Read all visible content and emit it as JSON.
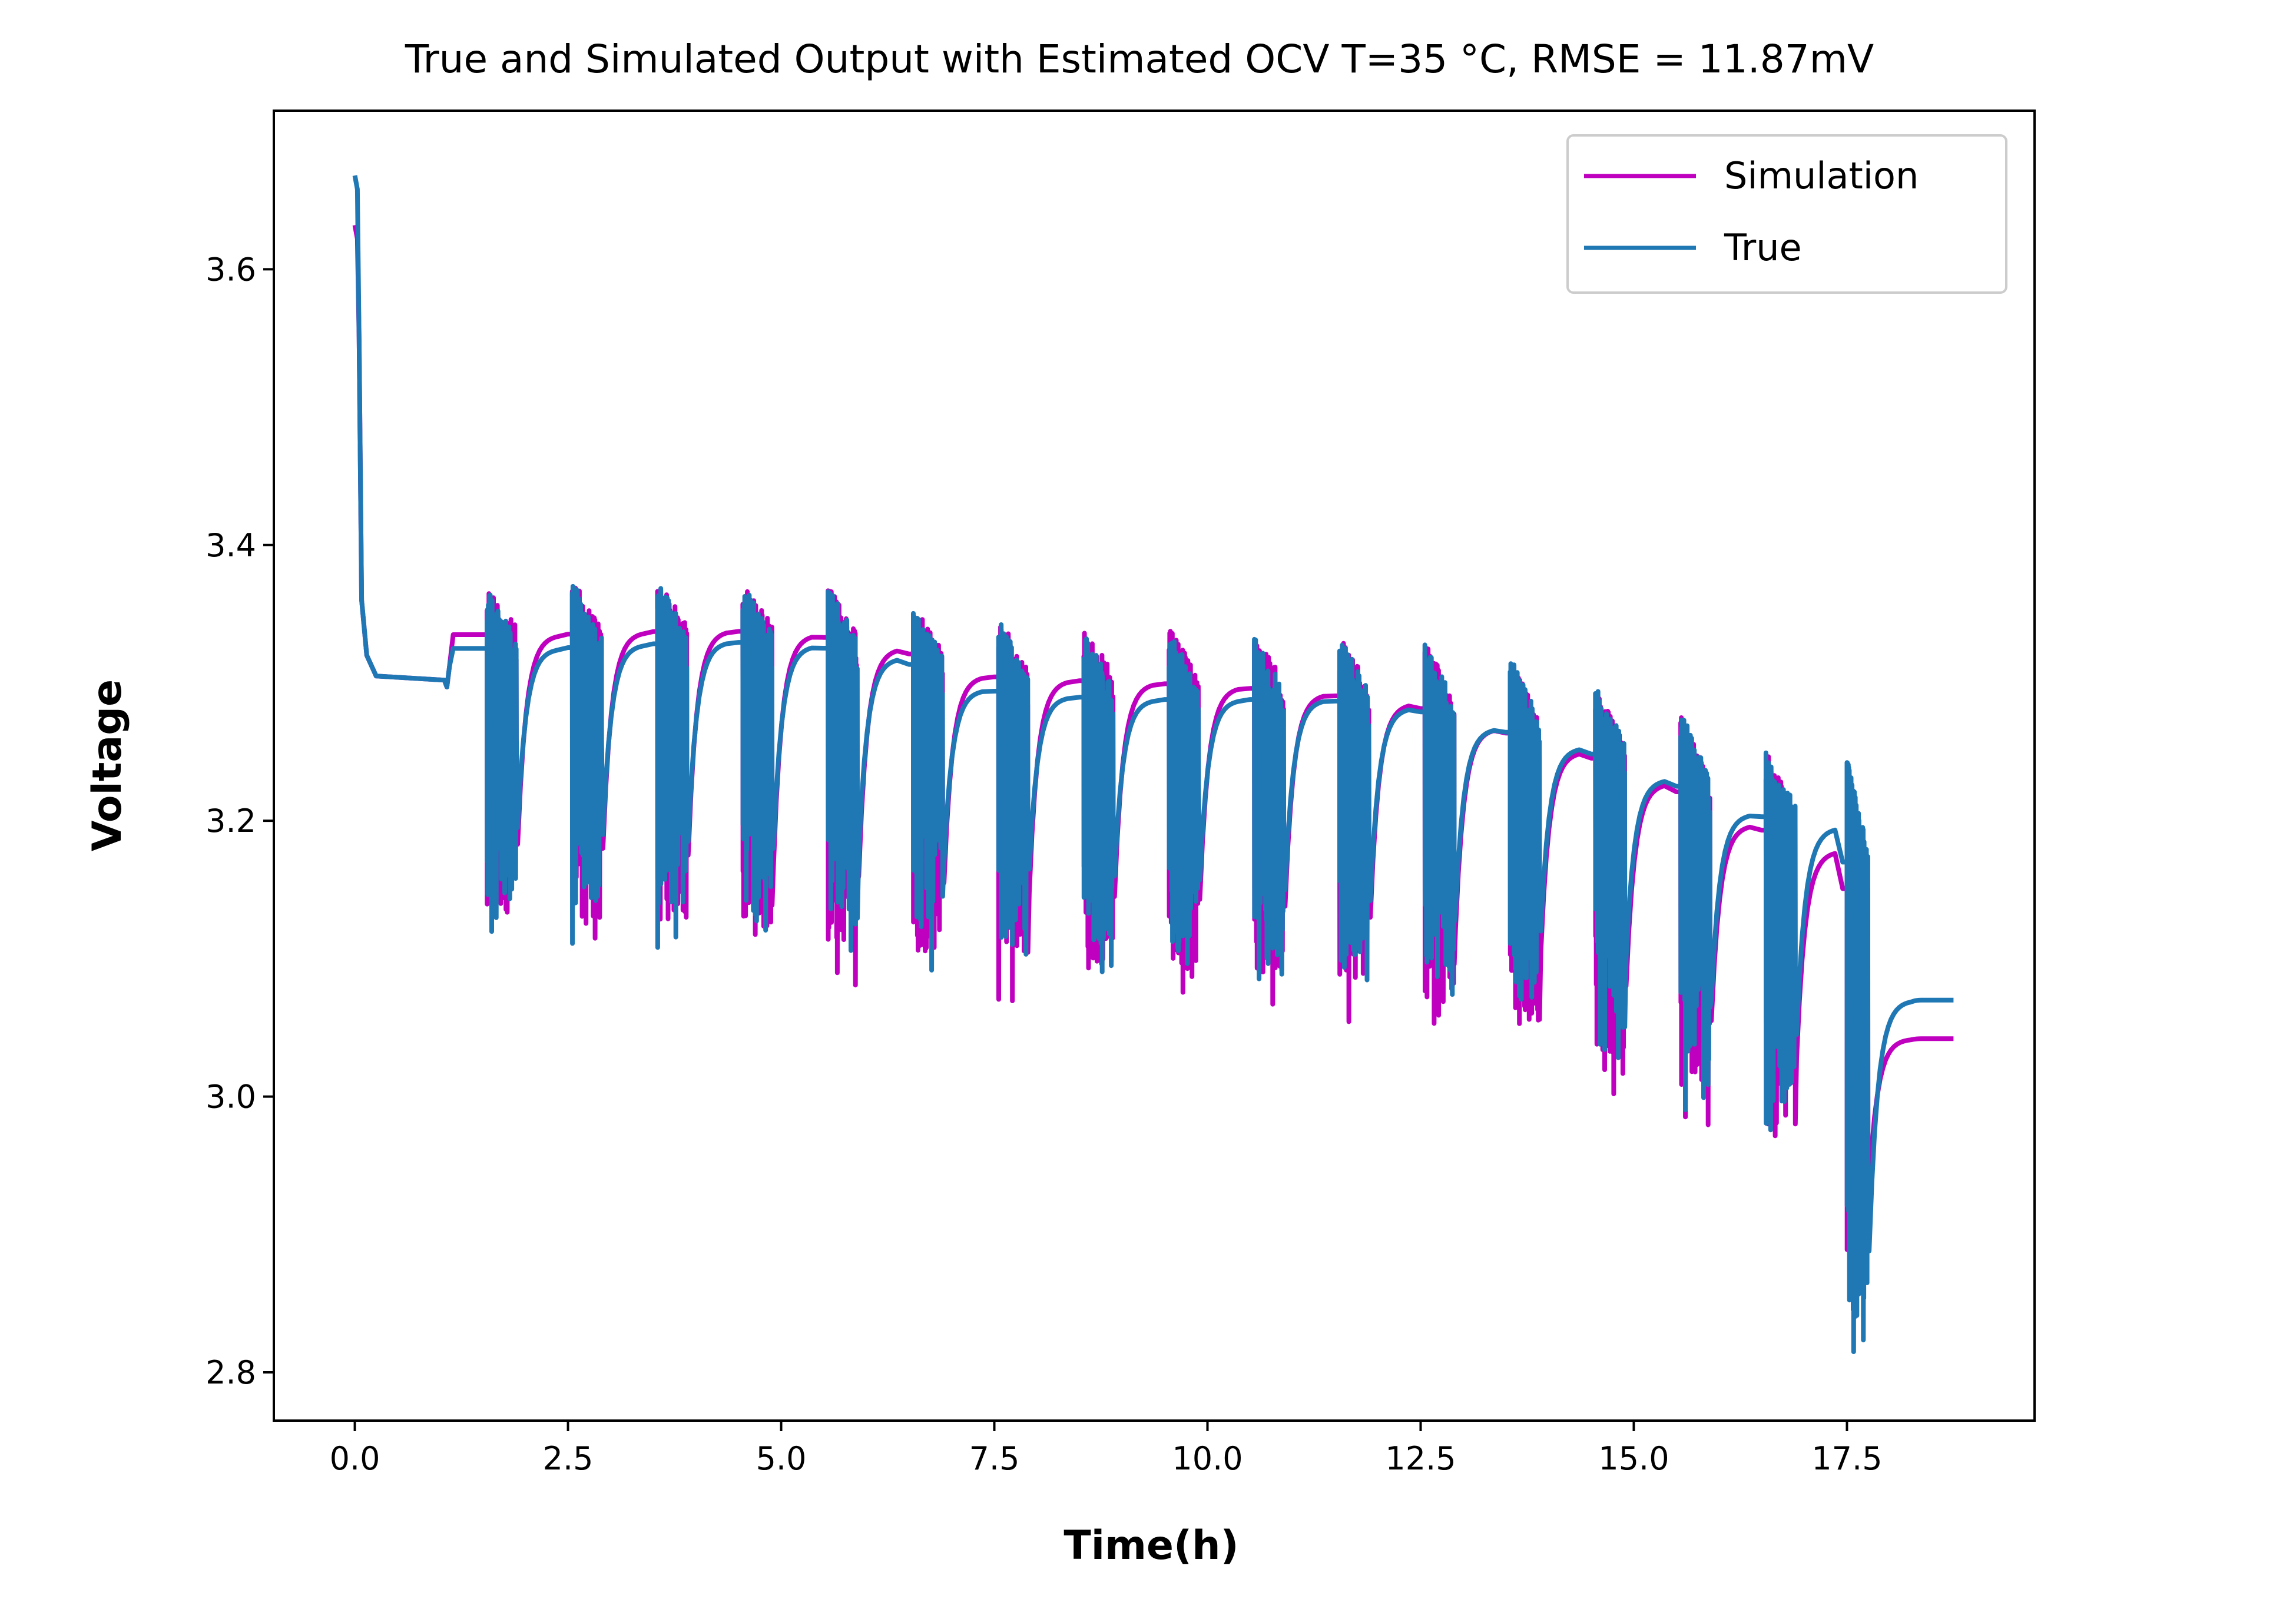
{
  "chart_data": {
    "type": "line",
    "title": "True and Simulated Output with Estimated OCV T=35 °C, RMSE = 11.87mV",
    "xlabel": "Time(h)",
    "ylabel": "Voltage",
    "xlim": [
      -0.95,
      19.7
    ],
    "ylim": [
      2.765,
      3.715
    ],
    "xticks": [
      0.0,
      2.5,
      5.0,
      7.5,
      10.0,
      12.5,
      15.0,
      17.5
    ],
    "xtick_labels": [
      "0.0",
      "2.5",
      "5.0",
      "7.5",
      "10.0",
      "12.5",
      "15.0",
      "17.5"
    ],
    "yticks": [
      2.8,
      3.0,
      3.2,
      3.4,
      3.6
    ],
    "ytick_labels": [
      "2.8",
      "3.0",
      "3.2",
      "3.4",
      "3.6"
    ],
    "grid": false,
    "legend_position": "top-right",
    "series": [
      {
        "name": "Simulation",
        "color": "#bf00bf"
      },
      {
        "name": "True",
        "color": "#1f77b4"
      }
    ],
    "initial": {
      "start_sim": 3.632,
      "start_true": 3.668,
      "rest_voltage": 3.302,
      "rest_until_h": 1.05
    },
    "pulse_groups": [
      {
        "t_start": 1.55,
        "t_end": 1.9,
        "v_max": 3.372,
        "true_min": 3.115,
        "sim_min": 3.103,
        "rest_true": 3.325,
        "rest_sim": 3.335
      },
      {
        "t_start": 2.55,
        "t_end": 2.9,
        "v_max": 3.375,
        "true_min": 3.11,
        "sim_min": 3.1,
        "rest_true": 3.328,
        "rest_sim": 3.337
      },
      {
        "t_start": 3.55,
        "t_end": 3.9,
        "v_max": 3.375,
        "true_min": 3.105,
        "sim_min": 3.095,
        "rest_true": 3.33,
        "rest_sim": 3.338
      },
      {
        "t_start": 4.55,
        "t_end": 4.9,
        "v_max": 3.372,
        "true_min": 3.1,
        "sim_min": 3.087,
        "rest_true": 3.327,
        "rest_sim": 3.335
      },
      {
        "t_start": 5.55,
        "t_end": 5.9,
        "v_max": 3.37,
        "true_min": 3.095,
        "sim_min": 3.08,
        "rest_true": 3.318,
        "rest_sim": 3.325
      },
      {
        "t_start": 6.55,
        "t_end": 6.9,
        "v_max": 3.355,
        "true_min": 3.09,
        "sim_min": 3.075,
        "rest_true": 3.295,
        "rest_sim": 3.305
      },
      {
        "t_start": 7.55,
        "t_end": 7.9,
        "v_max": 3.348,
        "true_min": 3.085,
        "sim_min": 3.068,
        "rest_true": 3.29,
        "rest_sim": 3.302
      },
      {
        "t_start": 8.55,
        "t_end": 8.9,
        "v_max": 3.34,
        "true_min": 3.08,
        "sim_min": 3.065,
        "rest_true": 3.288,
        "rest_sim": 3.3
      },
      {
        "t_start": 9.55,
        "t_end": 9.9,
        "v_max": 3.34,
        "true_min": 3.077,
        "sim_min": 3.063,
        "rest_true": 3.288,
        "rest_sim": 3.297
      },
      {
        "t_start": 10.55,
        "t_end": 10.9,
        "v_max": 3.335,
        "true_min": 3.07,
        "sim_min": 3.058,
        "rest_true": 3.288,
        "rest_sim": 3.292
      },
      {
        "t_start": 11.55,
        "t_end": 11.9,
        "v_max": 3.335,
        "true_min": 3.062,
        "sim_min": 3.05,
        "rest_true": 3.282,
        "rest_sim": 3.285
      },
      {
        "t_start": 12.55,
        "t_end": 12.9,
        "v_max": 3.33,
        "true_min": 3.055,
        "sim_min": 3.042,
        "rest_true": 3.267,
        "rest_sim": 3.267
      },
      {
        "t_start": 13.55,
        "t_end": 13.9,
        "v_max": 3.32,
        "true_min": 3.04,
        "sim_min": 3.025,
        "rest_true": 3.253,
        "rest_sim": 3.25
      },
      {
        "t_start": 14.55,
        "t_end": 14.9,
        "v_max": 3.3,
        "true_min": 3.02,
        "sim_min": 3.0,
        "rest_true": 3.23,
        "rest_sim": 3.227
      },
      {
        "t_start": 15.55,
        "t_end": 15.9,
        "v_max": 3.28,
        "true_min": 2.99,
        "sim_min": 2.975,
        "rest_true": 3.205,
        "rest_sim": 3.197
      },
      {
        "t_start": 16.55,
        "t_end": 16.9,
        "v_max": 3.255,
        "true_min": 2.965,
        "sim_min": 2.948,
        "rest_true": 3.195,
        "rest_sim": 3.178
      },
      {
        "t_start": 17.5,
        "t_end": 17.75,
        "v_max": 3.245,
        "true_min": 2.808,
        "sim_min": 2.855,
        "rest_true": 3.07,
        "rest_sim": 3.042
      }
    ],
    "final": {
      "t_end": 18.75,
      "true_end": 3.07,
      "sim_end": 3.042
    }
  }
}
